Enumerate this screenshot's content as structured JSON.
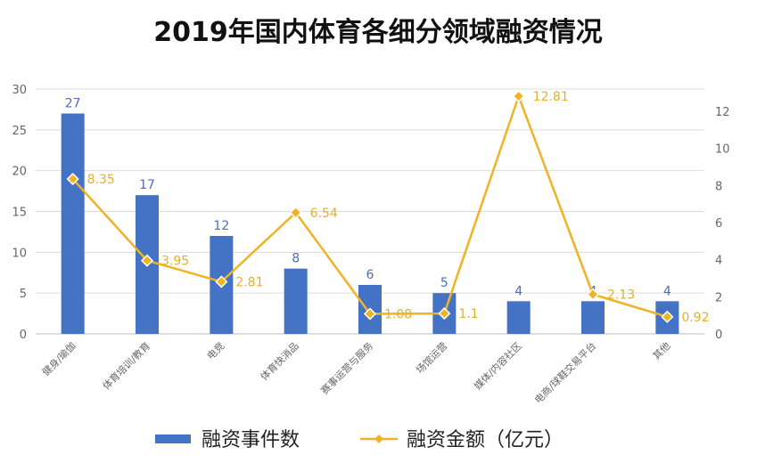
{
  "chart_data": {
    "type": "bar",
    "title": "2019年国内体育各细分领域融资情况",
    "categories": [
      "健身/瑜伽",
      "体育培训/教育",
      "电竞",
      "体育快消品",
      "赛事运营与服务",
      "场馆运营",
      "媒体/内容社区",
      "电商/球鞋交易平台",
      "其他"
    ],
    "series": [
      {
        "name": "融资事件数",
        "type": "bar",
        "axis": "left",
        "values": [
          27,
          17,
          12,
          8,
          6,
          5,
          4,
          4,
          4
        ],
        "labels": [
          "27",
          "17",
          "12",
          "8",
          "6",
          "5",
          "4",
          "4",
          "4"
        ],
        "color": "#4472c4"
      },
      {
        "name": "融资金额（亿元）",
        "type": "line",
        "axis": "right",
        "values": [
          8.35,
          3.95,
          2.81,
          6.54,
          1.08,
          1.1,
          12.81,
          2.13,
          0.92
        ],
        "labels": [
          "8.35",
          "3.95",
          "2.81",
          "6.54",
          "1.08",
          "1.1",
          "12.81",
          "2.13",
          "0.92"
        ],
        "color": "#f0b323"
      }
    ],
    "ylim_left": [
      0,
      30
    ],
    "ylim_right": [
      0,
      13.2
    ],
    "yticks_left": [
      "0",
      "5",
      "10",
      "15",
      "20",
      "25",
      "30"
    ],
    "yticks_right": [
      "0",
      "2",
      "4",
      "6",
      "8",
      "10",
      "12"
    ],
    "grid": true,
    "legend_position": "bottom"
  }
}
